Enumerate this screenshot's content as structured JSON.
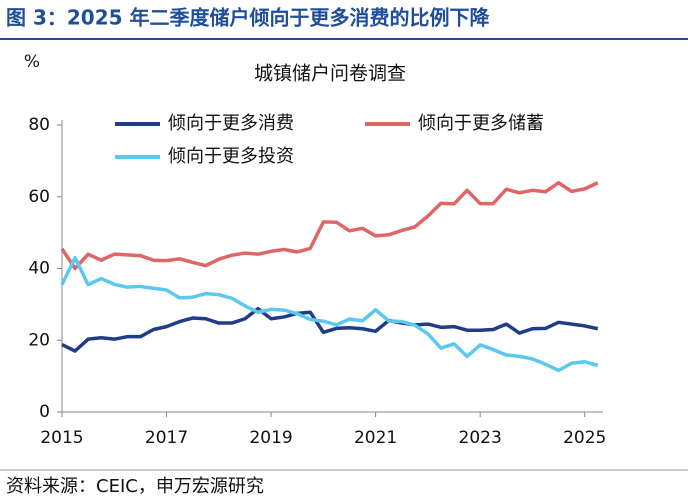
{
  "header": {
    "title": "图 3：2025 年二季度储户倾向于更多消费的比例下降"
  },
  "chart_data": {
    "type": "line",
    "title": "城镇储户问卷调查",
    "y_unit": "%",
    "x": [
      2015,
      2015.25,
      2015.5,
      2015.75,
      2016,
      2016.25,
      2016.5,
      2016.75,
      2017,
      2017.25,
      2017.5,
      2017.75,
      2018,
      2018.25,
      2018.5,
      2018.75,
      2019,
      2019.25,
      2019.5,
      2019.75,
      2020,
      2020.25,
      2020.5,
      2020.75,
      2021,
      2021.25,
      2021.5,
      2021.75,
      2022,
      2022.25,
      2022.5,
      2022.75,
      2023,
      2023.25,
      2023.5,
      2023.75,
      2024,
      2024.25,
      2024.5,
      2024.75,
      2025,
      2025.25
    ],
    "series": [
      {
        "name": "倾向于更多消费",
        "color": "#1f3c88",
        "values": [
          18.8,
          17,
          20.3,
          20.7,
          20.3,
          21,
          21,
          23,
          23.8,
          25.2,
          26.2,
          26,
          24.8,
          24.8,
          26,
          28.8,
          26,
          26.5,
          27.5,
          27.8,
          22.2,
          23.3,
          23.5,
          23.2,
          22.5,
          25.5,
          24.8,
          24.3,
          24.5,
          23.6,
          23.8,
          22.8,
          22.8,
          23,
          24.5,
          22,
          23.2,
          23.3,
          25,
          24.5,
          24,
          23.2
        ]
      },
      {
        "name": "倾向于更多储蓄",
        "color": "#e06666",
        "values": [
          45.5,
          40,
          44,
          42.3,
          44,
          43.8,
          43.6,
          42.3,
          42.2,
          42.7,
          41.7,
          40.8,
          42.6,
          43.7,
          44.3,
          44,
          44.8,
          45.3,
          44.6,
          45.6,
          53,
          52.9,
          50.5,
          51.2,
          49.1,
          49.4,
          50.6,
          51.6,
          54.6,
          58.2,
          58,
          61.8,
          58.1,
          58.1,
          62.1,
          61.1,
          61.8,
          61.4,
          63.9,
          61.5,
          62.2,
          63.9
        ]
      },
      {
        "name": "倾向于更多投资",
        "color": "#5bc8f0",
        "values": [
          35.5,
          43,
          35.5,
          37.2,
          35.6,
          34.8,
          35,
          34.5,
          34,
          31.8,
          32,
          33,
          32.7,
          31.7,
          29.6,
          27.8,
          28.6,
          28.4,
          27.4,
          25.8,
          25.3,
          24.3,
          25.9,
          25.4,
          28.5,
          25.4,
          25.2,
          24.2,
          21.8,
          17.8,
          19,
          15.5,
          18.7,
          17.4,
          15.9,
          15.5,
          14.8,
          13.3,
          11.6,
          13.6,
          14,
          13
        ]
      }
    ],
    "xlim": [
      2015,
      2025.35
    ],
    "xticks": [
      2015,
      2017,
      2019,
      2021,
      2023,
      2025
    ],
    "ylim": [
      0,
      80
    ],
    "yticks": [
      0,
      20,
      40,
      60,
      80
    ]
  },
  "footer": {
    "source": "资料来源：CEIC，申万宏源研究"
  }
}
